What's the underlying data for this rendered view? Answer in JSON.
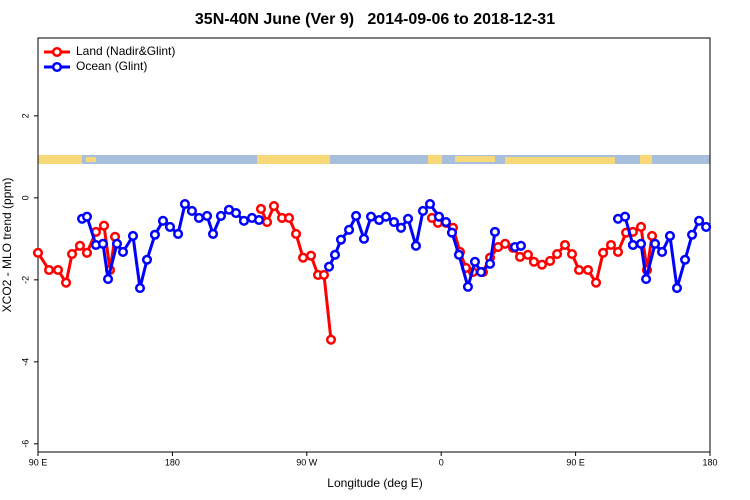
{
  "chart_data": {
    "type": "line",
    "title": "35N-40N June (Ver 9)   2014-09-06 to 2018-12-31",
    "xlabel": "Longitude (deg E)",
    "ylabel": "XCO2 - MLO trend (ppm)",
    "xlim": [
      90,
      540
    ],
    "ylim": [
      -6.2,
      3.9
    ],
    "xticks": [
      {
        "value": 90,
        "label": "90 E"
      },
      180,
      {
        "value": 270,
        "label": "90 W"
      },
      {
        "value": 360,
        "label": "0"
      },
      {
        "value": 450,
        "label": "90 E"
      },
      {
        "value": 540,
        "label": "180"
      }
    ],
    "yticks": [
      -6,
      -4,
      -2,
      0,
      2
    ],
    "legend": "top-left",
    "series": [
      {
        "name": "Land (Nadir&Glint)",
        "color": "#ff0000",
        "x": [
          90,
          97.4,
          103.4,
          108.8,
          112.8,
          118.1,
          122.8,
          128.8,
          134.2,
          138.2,
          141.6,
          null,
          239.3,
          243.4,
          248.0,
          253.4,
          258.1,
          262.8,
          267.5,
          272.8,
          277.5,
          281.5,
          286.2,
          null,
          353.8,
          357.8,
          363.2,
          367.9,
          372.6,
          376.6,
          381.3,
          388.0,
          392.7,
          398.1,
          402.8,
          408.1,
          412.8,
          418.1,
          422.1,
          427.5,
          432.9,
          437.6,
          442.9,
          447.6,
          452.3,
          458.3,
          463.7,
          468.4,
          473.7,
          478.4,
          483.8,
          488.4,
          493.8,
          497.8,
          501.2
        ],
        "values": [
          -1.34,
          -1.76,
          -1.76,
          -2.07,
          -1.37,
          -1.17,
          -1.34,
          -0.83,
          -0.68,
          -1.76,
          -0.95,
          null,
          -0.27,
          -0.59,
          -0.2,
          -0.49,
          -0.49,
          -0.88,
          -1.46,
          -1.41,
          -1.88,
          -1.88,
          -3.46,
          null,
          -0.49,
          -0.61,
          -0.61,
          -0.73,
          -1.32,
          -1.71,
          -1.81,
          -1.81,
          -1.46,
          -1.2,
          -1.12,
          -1.22,
          -1.44,
          -1.39,
          -1.56,
          -1.63,
          -1.54,
          -1.37,
          -1.15,
          -1.37,
          -1.76,
          -1.76,
          -2.07,
          -1.34,
          -1.15,
          -1.32,
          -0.85,
          -0.83,
          -0.71,
          -1.76,
          -0.93
        ]
      },
      {
        "name": "Ocean (Glint)",
        "color": "#0000ff",
        "x": [
          119.5,
          122.8,
          128.8,
          133.5,
          136.9,
          142.9,
          146.9,
          153.6,
          158.3,
          163.0,
          168.3,
          173.7,
          178.4,
          183.8,
          188.4,
          193.1,
          197.8,
          203.2,
          207.2,
          212.5,
          217.9,
          222.6,
          227.9,
          233.3,
          238.0,
          null,
          284.9,
          288.9,
          292.9,
          298.3,
          303.0,
          308.3,
          313.0,
          318.4,
          323.0,
          328.4,
          333.1,
          337.8,
          343.1,
          347.8,
          352.5,
          358.5,
          363.2,
          367.2,
          371.9,
          377.9,
          382.6,
          386.7,
          392.7,
          396.0,
          null,
          409.4,
          413.4,
          null,
          478.4,
          483.1,
          488.4,
          493.8,
          497.2,
          503.2,
          507.9,
          513.2,
          517.9,
          523.3,
          528.0,
          532.7,
          537.4
        ],
        "values": [
          -0.51,
          -0.46,
          -1.15,
          -1.12,
          -1.98,
          -1.12,
          -1.32,
          -0.93,
          -2.2,
          -1.51,
          -0.9,
          -0.56,
          -0.71,
          -0.88,
          -0.15,
          -0.32,
          -0.49,
          -0.44,
          -0.88,
          -0.44,
          -0.29,
          -0.37,
          -0.56,
          -0.49,
          -0.54,
          null,
          -1.68,
          -1.39,
          -1.02,
          -0.78,
          -0.44,
          -1.0,
          -0.46,
          -0.54,
          -0.46,
          -0.59,
          -0.73,
          -0.51,
          -1.17,
          -0.32,
          -0.15,
          -0.46,
          -0.59,
          -0.85,
          -1.39,
          -2.17,
          -1.56,
          -1.81,
          -1.61,
          -0.83,
          null,
          -1.2,
          -1.17,
          null,
          -0.51,
          -0.46,
          -1.15,
          -1.12,
          -1.98,
          -1.12,
          -1.32,
          -0.93,
          -2.2,
          -1.51,
          -0.9,
          -0.56,
          -0.71
        ]
      }
    ]
  }
}
